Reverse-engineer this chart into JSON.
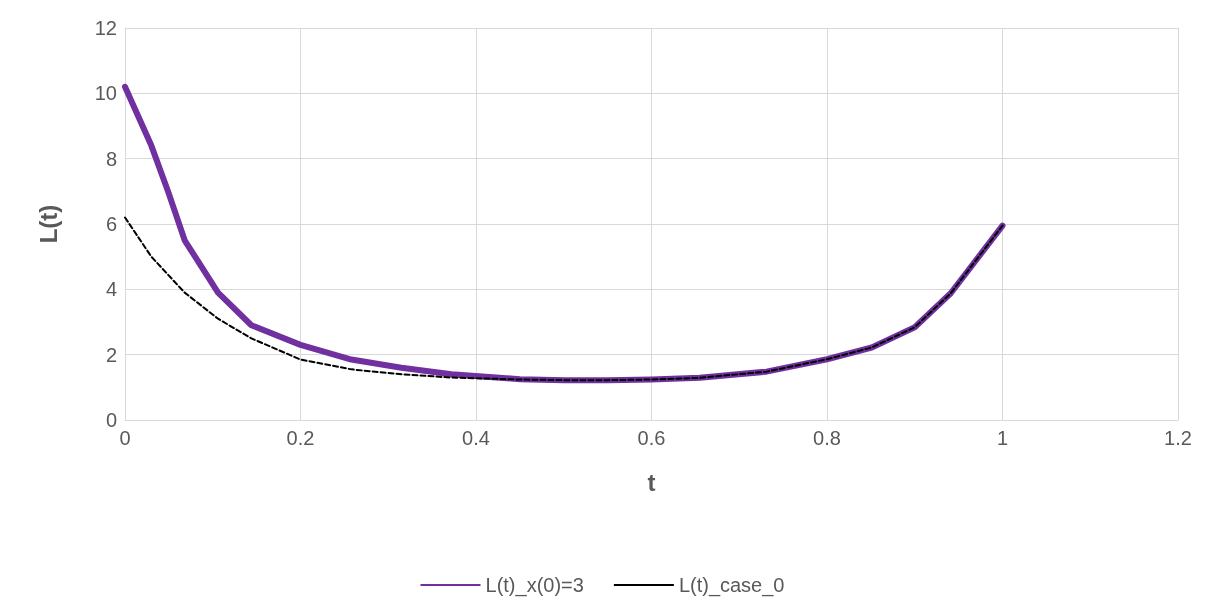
{
  "chart_data": {
    "type": "line",
    "xlabel": "t",
    "ylabel": "L(t)",
    "xlim": [
      0,
      1.2
    ],
    "xticks": [
      0,
      0.2,
      0.4,
      0.6,
      0.8,
      1,
      1.2
    ],
    "ylim": [
      0,
      12
    ],
    "yticks": [
      0,
      2,
      4,
      6,
      8,
      10,
      12
    ],
    "grid": true,
    "legend": "bottom",
    "marker": "none",
    "series": [
      {
        "name": "L(t)_x(0)=3",
        "color": "#7030a0",
        "line_style": "solid",
        "x": [
          0,
          0.03,
          0.049,
          0.068,
          0.106,
          0.144,
          0.2,
          0.258,
          0.315,
          0.372,
          0.45,
          0.5,
          0.55,
          0.6,
          0.655,
          0.731,
          0.8,
          0.851,
          0.9,
          0.941,
          1.0
        ],
        "values": [
          10.2,
          8.4,
          7.0,
          5.5,
          3.9,
          2.9,
          2.3,
          1.85,
          1.6,
          1.4,
          1.25,
          1.22,
          1.22,
          1.24,
          1.29,
          1.48,
          1.86,
          2.22,
          2.84,
          3.88,
          5.95
        ]
      },
      {
        "name": "L(t)_case_0",
        "color": "#000000",
        "line_style": "dashed",
        "x": [
          0,
          0.03,
          0.068,
          0.106,
          0.144,
          0.2,
          0.258,
          0.315,
          0.372,
          0.45,
          0.5,
          0.55,
          0.6,
          0.655,
          0.731,
          0.8,
          0.851,
          0.9,
          0.941,
          1.0
        ],
        "values": [
          6.2,
          5.0,
          3.9,
          3.1,
          2.5,
          1.85,
          1.55,
          1.4,
          1.3,
          1.24,
          1.22,
          1.22,
          1.24,
          1.29,
          1.48,
          1.86,
          2.22,
          2.84,
          3.88,
          5.95
        ]
      }
    ]
  }
}
